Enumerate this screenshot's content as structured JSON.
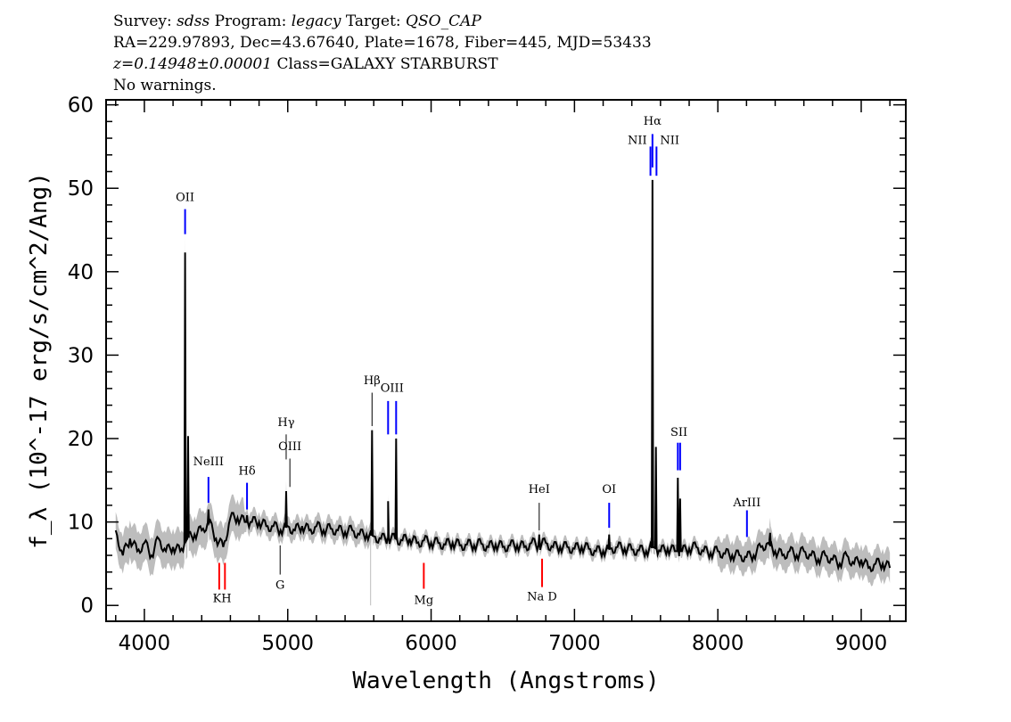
{
  "header": {
    "survey_label": "Survey:",
    "survey": "sdss",
    "program_label": "Program:",
    "program": "legacy",
    "target_label": "Target:",
    "target": "QSO_CAP",
    "line2": "RA=229.97893, Dec=43.67640, Plate=1678, Fiber=445, MJD=53433",
    "redshift": "z=0.14948±0.00001",
    "class": "Class=GALAXY STARBURST",
    "warnings": "No warnings."
  },
  "chart_data": {
    "type": "line",
    "xlabel": "Wavelength (Angstroms)",
    "ylabel": "f_λ (10^-17 erg/s/cm^2/Ang)",
    "xlim": [
      3733,
      9311
    ],
    "ylim": [
      -1.9,
      60.6
    ],
    "xticks": [
      4000,
      5000,
      6000,
      7000,
      8000,
      9000
    ],
    "yticks": [
      0,
      10,
      20,
      30,
      40,
      50,
      60
    ],
    "grid": false,
    "colors": {
      "flux": "#000000",
      "error": "#bdbdbd",
      "emission": "#0000ff",
      "absorption": "#ff0000",
      "sky": "#000000"
    },
    "continuum": {
      "x": [
        3800,
        3850,
        3900,
        3950,
        4000,
        4050,
        4100,
        4150,
        4200,
        4250,
        4300,
        4350,
        4400,
        4450,
        4500,
        4550,
        4600,
        4650,
        4700,
        4750,
        4800,
        4850,
        4900,
        4950,
        5000,
        5050,
        5100,
        5150,
        5200,
        5250,
        5300,
        5350,
        5400,
        5450,
        5500,
        5550,
        5600,
        5650,
        5700,
        5750,
        5800,
        5850,
        5900,
        5950,
        6000,
        6050,
        6100,
        6150,
        6200,
        6250,
        6300,
        6350,
        6400,
        6450,
        6500,
        6550,
        6600,
        6650,
        6700,
        6750,
        6800,
        6850,
        6900,
        6950,
        7000,
        7050,
        7100,
        7150,
        7200,
        7250,
        7300,
        7350,
        7400,
        7450,
        7500,
        7550,
        7600,
        7650,
        7700,
        7750,
        7800,
        7850,
        7900,
        7950,
        8000,
        8050,
        8100,
        8150,
        8200,
        8250,
        8300,
        8350,
        8400,
        8450,
        8500,
        8550,
        8600,
        8650,
        8700,
        8750,
        8800,
        8850,
        8900,
        8950,
        9000,
        9050,
        9100,
        9150,
        9200
      ],
      "y": [
        9,
        6,
        8,
        6.5,
        7.5,
        6,
        8,
        6.5,
        7,
        6.5,
        8,
        8.5,
        9,
        10,
        8,
        7,
        10.5,
        10.5,
        10,
        10,
        10,
        9.5,
        9.5,
        9,
        9.5,
        9,
        9.5,
        9,
        9.5,
        9,
        9.2,
        9,
        8.8,
        9,
        8.5,
        8.5,
        8.3,
        8,
        8,
        8,
        7.8,
        8,
        7.5,
        7.8,
        7.5,
        7.5,
        7.3,
        7.5,
        7.2,
        7.3,
        7.2,
        7.4,
        7,
        7.3,
        7,
        7.2,
        7.2,
        7,
        7.5,
        7.2,
        7.5,
        7,
        7,
        7,
        6.8,
        7,
        6.8,
        6.5,
        6.5,
        6.8,
        7,
        6.8,
        6.7,
        6.6,
        6.5,
        7,
        6.5,
        6.8,
        6.5,
        6.5,
        6.8,
        7,
        6.5,
        6.3,
        6.5,
        6.2,
        6,
        6,
        5.8,
        6,
        7,
        7.5,
        6.5,
        6,
        6.5,
        6,
        6.5,
        6,
        5.5,
        6,
        5.5,
        5,
        6,
        5,
        5.5,
        4.5,
        5,
        5,
        4.5
      ]
    },
    "emission_peaks": [
      {
        "x": 4284,
        "y": 42.3
      },
      {
        "x": 4305,
        "y": 20.3
      },
      {
        "x": 4447,
        "y": 11.5
      },
      {
        "x": 4716,
        "y": 10.8
      },
      {
        "x": 4989,
        "y": 13.7
      },
      {
        "x": 5588,
        "y": 21
      },
      {
        "x": 5700,
        "y": 12.5
      },
      {
        "x": 5756,
        "y": 20
      },
      {
        "x": 6754,
        "y": 8.5
      },
      {
        "x": 7242,
        "y": 8.5
      },
      {
        "x": 7544,
        "y": 51
      },
      {
        "x": 7568,
        "y": 19
      },
      {
        "x": 7721,
        "y": 15.3
      },
      {
        "x": 7737,
        "y": 12.8
      },
      {
        "x": 8365,
        "y": 8.7
      }
    ],
    "error_sigma": [
      {
        "from": 3733,
        "to": 4700,
        "sigma": 2.2
      },
      {
        "from": 4700,
        "to": 5600,
        "sigma": 1.2
      },
      {
        "from": 5600,
        "to": 8000,
        "sigma": 0.8
      },
      {
        "from": 8000,
        "to": 9311,
        "sigma": 1.8
      }
    ],
    "line_labels": [
      {
        "label": "OII",
        "x": [
          4284
        ],
        "label_y": 48.5,
        "mark": [
          44.5,
          47.5
        ],
        "kind": "emission"
      },
      {
        "label": "NeIII",
        "x": [
          4447
        ],
        "label_y": 16.8,
        "mark": [
          12.3,
          15.4
        ],
        "kind": "emission"
      },
      {
        "label": "Hδ",
        "x": [
          4716
        ],
        "label_y": 15.7,
        "mark": [
          11.5,
          14.7
        ],
        "kind": "emission"
      },
      {
        "label": "Hγ",
        "x": [
          4989
        ],
        "label_y": 21.5,
        "mark": [
          17.5,
          20.5
        ],
        "kind": "sky"
      },
      {
        "label": "OIII",
        "x": [
          5015
        ],
        "label_y": 18.6,
        "mark": [
          14.2,
          17.6
        ],
        "kind": "sky"
      },
      {
        "label": "Hβ",
        "x": [
          5588
        ],
        "label_y": 26.5,
        "mark": [
          21.5,
          25.5
        ],
        "kind": "sky"
      },
      {
        "label": "OIII",
        "x": [
          5700,
          5756
        ],
        "label_y": 25.6,
        "mark": [
          20.5,
          24.5
        ],
        "kind": "emission"
      },
      {
        "label": "HeI",
        "x": [
          6754
        ],
        "label_y": 13.5,
        "mark": [
          9,
          12.3
        ],
        "kind": "sky"
      },
      {
        "label": "OI",
        "x": [
          7242
        ],
        "label_y": 13.5,
        "mark": [
          9.3,
          12.3
        ],
        "kind": "emission"
      },
      {
        "label": "Hα",
        "x": [
          7544
        ],
        "label_y": 57.6,
        "mark": [
          52.5,
          56.5
        ],
        "kind": "emission"
      },
      {
        "label": "NII",
        "x": [
          7530
        ],
        "label_y": 55.3,
        "mark": [
          51.5,
          55
        ],
        "kind": "emission",
        "anchor": "end"
      },
      {
        "label": "NII",
        "x": [
          7572
        ],
        "label_y": 55.3,
        "mark": [
          51.5,
          55
        ],
        "kind": "emission",
        "anchor": "start"
      },
      {
        "label": "SII",
        "x": [
          7721,
          7737
        ],
        "label_y": 20.3,
        "mark": [
          16.2,
          19.5
        ],
        "kind": "emission"
      },
      {
        "label": "ArIII",
        "x": [
          8203
        ],
        "label_y": 11.9,
        "mark": [
          8.2,
          11.4
        ],
        "kind": "emission"
      },
      {
        "label": "KH",
        "x": [
          4522,
          4562
        ],
        "label_y": 0.4,
        "mark": [
          1.9,
          5.1
        ],
        "kind": "absorption"
      },
      {
        "label": "G",
        "x": [
          4947
        ],
        "label_y": 2.0,
        "mark": [
          3.7,
          7.2
        ],
        "kind": "sky"
      },
      {
        "label": "Mg",
        "x": [
          5949
        ],
        "label_y": 0.2,
        "mark": [
          2,
          5.1
        ],
        "kind": "absorption"
      },
      {
        "label": "Na D",
        "x": [
          6774
        ],
        "label_y": 0.6,
        "mark": [
          2.2,
          5.6
        ],
        "kind": "absorption"
      }
    ]
  }
}
